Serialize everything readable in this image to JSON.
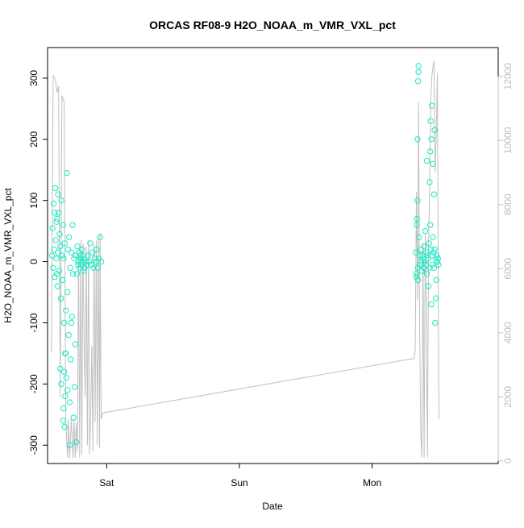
{
  "chart_data": {
    "type": "scatter",
    "title": "ORCAS RF08-9 H2O_NOAA_m_VMR_VXL_pct",
    "xlabel": "Date",
    "ylabel": "H2O_NOAA_m_VMR_VXL_pct",
    "x_ticks": [
      {
        "label": "Sat",
        "hours": 24
      },
      {
        "label": "Sun",
        "hours": 48
      },
      {
        "label": "Mon",
        "hours": 72
      }
    ],
    "xlim_hours": [
      13.3,
      94.8
    ],
    "y_ticks": [
      -300,
      -200,
      -100,
      0,
      100,
      200,
      300
    ],
    "ylim": [
      -330,
      350
    ],
    "y2_ticks": [
      0,
      2000,
      4000,
      6000,
      8000,
      10000,
      12000
    ],
    "y2lim": [
      -80,
      12900
    ],
    "y2_note": "right axis has no label",
    "grid": false,
    "legend": "none",
    "colors": {
      "points": "#1de9c4",
      "line": "#c0c0c0",
      "axis": "#000000",
      "axis2": "#bdbdbd"
    },
    "series": [
      {
        "kind": "points-open-circles",
        "axis": "left",
        "x_hours": [
          14.1,
          14.2,
          14.3,
          14.4,
          14.5,
          14.6,
          14.7,
          14.8,
          14.9,
          15.0,
          15.1,
          15.2,
          15.3,
          15.4,
          15.5,
          15.6,
          15.7,
          15.8,
          15.9,
          16.0,
          16.1,
          16.2,
          16.3,
          16.4,
          16.5,
          16.6,
          16.7,
          16.8,
          16.9,
          17.0,
          17.1,
          17.2,
          17.3,
          17.4,
          17.5,
          17.6,
          17.7,
          17.8,
          17.9,
          18.0,
          18.1,
          18.2,
          18.3,
          18.4,
          18.5,
          18.6,
          18.7,
          18.8,
          18.9,
          19.0,
          19.1,
          19.2,
          19.3,
          19.4,
          19.5,
          19.6,
          19.7,
          19.8,
          19.9,
          20.0,
          20.2,
          20.4,
          20.6,
          20.8,
          21.0,
          21.2,
          21.4,
          21.6,
          21.8,
          22.0,
          22.2,
          22.4,
          22.6,
          22.8,
          23.0,
          15.0,
          15.6,
          15.8,
          16.2,
          16.4,
          16.6,
          16.9,
          17.3,
          17.6,
          16.0,
          16.3,
          16.5,
          16.1,
          15.2,
          14.6,
          14.9,
          79.9,
          80.0,
          80.1,
          80.2,
          80.3,
          80.4,
          80.5,
          80.6,
          80.7,
          80.8,
          80.9,
          81.0,
          81.1,
          81.2,
          81.3,
          81.4,
          81.5,
          81.6,
          81.7,
          81.8,
          81.9,
          82.0,
          82.1,
          82.2,
          82.3,
          82.4,
          82.5,
          82.6,
          82.7,
          82.8,
          82.9,
          83.0,
          83.1,
          83.2,
          83.3,
          83.4,
          83.5,
          83.6,
          83.7,
          83.8,
          83.9,
          84.0,
          80.0,
          80.1,
          80.2,
          80.3,
          80.4,
          82.4,
          82.5,
          82.6,
          82.8,
          83.0,
          83.2,
          83.3,
          82.7,
          80.3,
          81.9,
          83.5
        ],
        "y": [
          10,
          55,
          -10,
          95,
          20,
          -25,
          120,
          35,
          5,
          70,
          -40,
          15,
          80,
          -15,
          45,
          25,
          -60,
          100,
          10,
          -30,
          60,
          5,
          -100,
          30,
          -150,
          -80,
          -190,
          145,
          -50,
          20,
          -120,
          40,
          -230,
          -10,
          -160,
          15,
          -90,
          60,
          -20,
          -255,
          5,
          -205,
          -135,
          10,
          -295,
          -20,
          25,
          -5,
          0,
          15,
          -10,
          10,
          5,
          -5,
          20,
          0,
          10,
          -15,
          5,
          -10,
          0,
          -5,
          10,
          0,
          30,
          -5,
          15,
          -10,
          5,
          0,
          20,
          -10,
          5,
          40,
          0,
          -20,
          -175,
          -200,
          -240,
          -270,
          -150,
          -210,
          -300,
          -100,
          -30,
          -180,
          -220,
          -260,
          110,
          80,
          65,
          15,
          -25,
          60,
          100,
          -30,
          320,
          40,
          10,
          -5,
          20,
          0,
          -15,
          10,
          5,
          -10,
          25,
          0,
          50,
          -5,
          15,
          -20,
          10,
          5,
          -40,
          30,
          -10,
          60,
          20,
          -70,
          10,
          -5,
          40,
          15,
          -10,
          20,
          -100,
          5,
          -30,
          10,
          0,
          5,
          -5,
          -20,
          70,
          200,
          295,
          310,
          130,
          180,
          230,
          255,
          160,
          110,
          215,
          200,
          -10,
          165,
          -60
        ]
      },
      {
        "kind": "line",
        "axis": "right",
        "x_hours": [
          14.0,
          14.3,
          14.7,
          15.0,
          15.3,
          15.6,
          15.9,
          16.1,
          16.3,
          16.6,
          16.9,
          17.1,
          17.3,
          17.6,
          17.9,
          18.1,
          18.3,
          18.5,
          18.7,
          18.9,
          19.1,
          19.3,
          19.5,
          19.7,
          19.9,
          20.1,
          20.3,
          20.5,
          20.7,
          20.9,
          21.1,
          21.3,
          21.5,
          21.7,
          21.9,
          22.1,
          22.3,
          22.5,
          22.7,
          22.8,
          23.0,
          23.3,
          79.6,
          79.8,
          80.0,
          80.2,
          80.4,
          80.6,
          80.8,
          81.0,
          81.2,
          81.4,
          81.6,
          81.8,
          82.0,
          82.2,
          82.4,
          82.6,
          82.8,
          83.0,
          83.2,
          83.4,
          83.6,
          83.8,
          84.0,
          84.1
        ],
        "y2": [
          3400,
          12050,
          11900,
          11500,
          11700,
          2000,
          11400,
          11300,
          11200,
          1300,
          100,
          1300,
          100,
          1300,
          100,
          1300,
          100,
          1200,
          300,
          6500,
          100,
          6900,
          200,
          6800,
          3800,
          2000,
          6700,
          500,
          6900,
          200,
          1500,
          3600,
          300,
          6800,
          1200,
          6900,
          500,
          7000,
          400,
          7100,
          1300,
          1500,
          3200,
          3500,
          8400,
          5000,
          11200,
          4000,
          800,
          100,
          6800,
          100,
          7100,
          5000,
          100,
          6700,
          8500,
          11200,
          12000,
          12300,
          12500,
          9000,
          10300,
          12100,
          4000,
          1300
        ]
      }
    ]
  }
}
